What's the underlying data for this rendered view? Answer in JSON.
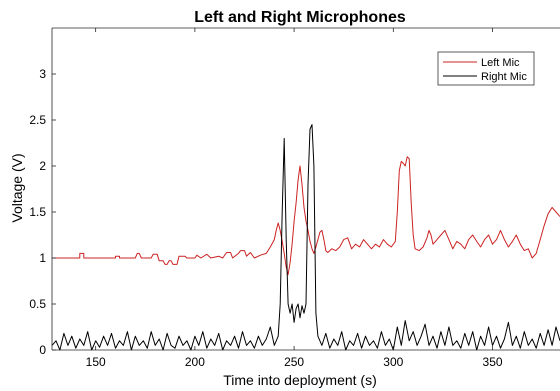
{
  "chart_data": {
    "type": "line",
    "title": "Left and Right Microphones",
    "xlabel": "Time into deployment (s)",
    "ylabel": "Voltage (V)",
    "xlim": [
      128,
      384
    ],
    "ylim": [
      0,
      3.5
    ],
    "xticks": [
      150,
      200,
      250,
      300,
      350
    ],
    "yticks": [
      0,
      0.5,
      1,
      1.5,
      2,
      2.5,
      3
    ],
    "ytick_labels": [
      "0",
      "0.5",
      "1",
      "1.5",
      "2",
      "2.5",
      "3"
    ],
    "legend_position": "top-right",
    "grid": false,
    "series": [
      {
        "name": "Left Mic",
        "color": "#cc2222",
        "points": [
          [
            128,
            1.0
          ],
          [
            140,
            1.0
          ],
          [
            142,
            1.0
          ],
          [
            142,
            1.05
          ],
          [
            144,
            1.05
          ],
          [
            144,
            1.0
          ],
          [
            160,
            1.0
          ],
          [
            160,
            1.02
          ],
          [
            162,
            1.02
          ],
          [
            162,
            1.0
          ],
          [
            170,
            1.0
          ],
          [
            171,
            1.05
          ],
          [
            172,
            1.05
          ],
          [
            173,
            1.0
          ],
          [
            178,
            1.0
          ],
          [
            179,
            1.04
          ],
          [
            181,
            1.04
          ],
          [
            182,
            0.97
          ],
          [
            184,
            0.97
          ],
          [
            185,
            0.93
          ],
          [
            186,
            0.93
          ],
          [
            187,
            0.97
          ],
          [
            188,
            0.97
          ],
          [
            189,
            0.93
          ],
          [
            191,
            0.93
          ],
          [
            192,
            1.02
          ],
          [
            195,
            1.02
          ],
          [
            196,
            1.0
          ],
          [
            200,
            1.0
          ],
          [
            201,
            1.03
          ],
          [
            203,
            1.0
          ],
          [
            206,
            1.04
          ],
          [
            208,
            1.0
          ],
          [
            212,
            1.02
          ],
          [
            214,
            1.0
          ],
          [
            216,
            1.06
          ],
          [
            218,
            1.06
          ],
          [
            219,
            1.0
          ],
          [
            222,
            1.05
          ],
          [
            223,
            1.08
          ],
          [
            225,
            1.08
          ],
          [
            226,
            1.02
          ],
          [
            228,
            1.06
          ],
          [
            230,
            1.0
          ],
          [
            233,
            1.03
          ],
          [
            236,
            1.05
          ],
          [
            238,
            1.12
          ],
          [
            240,
            1.2
          ],
          [
            241,
            1.3
          ],
          [
            242,
            1.38
          ],
          [
            243,
            1.3
          ],
          [
            244,
            1.18
          ],
          [
            245,
            1.05
          ],
          [
            246,
            0.9
          ],
          [
            247,
            0.82
          ],
          [
            248,
            0.95
          ],
          [
            249,
            1.15
          ],
          [
            250,
            1.4
          ],
          [
            251,
            1.6
          ],
          [
            252,
            1.85
          ],
          [
            253,
            2.0
          ],
          [
            254,
            1.8
          ],
          [
            255,
            1.55
          ],
          [
            256,
            1.4
          ],
          [
            257,
            1.3
          ],
          [
            258,
            1.18
          ],
          [
            259,
            1.1
          ],
          [
            260,
            1.05
          ],
          [
            261,
            1.12
          ],
          [
            262,
            1.2
          ],
          [
            263,
            1.28
          ],
          [
            264,
            1.3
          ],
          [
            265,
            1.2
          ],
          [
            266,
            1.08
          ],
          [
            267,
            1.06
          ],
          [
            269,
            1.1
          ],
          [
            271,
            1.08
          ],
          [
            273,
            1.12
          ],
          [
            275,
            1.2
          ],
          [
            277,
            1.22
          ],
          [
            279,
            1.1
          ],
          [
            281,
            1.15
          ],
          [
            283,
            1.12
          ],
          [
            285,
            1.2
          ],
          [
            287,
            1.15
          ],
          [
            289,
            1.1
          ],
          [
            291,
            1.15
          ],
          [
            293,
            1.12
          ],
          [
            295,
            1.2
          ],
          [
            297,
            1.15
          ],
          [
            299,
            1.12
          ],
          [
            301,
            1.18
          ],
          [
            302,
            1.5
          ],
          [
            303,
            1.95
          ],
          [
            304,
            2.05
          ],
          [
            305,
            2.03
          ],
          [
            306,
            2.0
          ],
          [
            307,
            2.1
          ],
          [
            308,
            2.08
          ],
          [
            309,
            1.6
          ],
          [
            310,
            1.25
          ],
          [
            311,
            1.1
          ],
          [
            313,
            1.08
          ],
          [
            315,
            1.12
          ],
          [
            317,
            1.22
          ],
          [
            318,
            1.3
          ],
          [
            319,
            1.25
          ],
          [
            320,
            1.15
          ],
          [
            322,
            1.2
          ],
          [
            324,
            1.25
          ],
          [
            326,
            1.3
          ],
          [
            328,
            1.2
          ],
          [
            330,
            1.1
          ],
          [
            332,
            1.18
          ],
          [
            334,
            1.15
          ],
          [
            336,
            1.1
          ],
          [
            338,
            1.2
          ],
          [
            340,
            1.25
          ],
          [
            342,
            1.18
          ],
          [
            344,
            1.12
          ],
          [
            346,
            1.2
          ],
          [
            348,
            1.25
          ],
          [
            350,
            1.15
          ],
          [
            352,
            1.2
          ],
          [
            354,
            1.3
          ],
          [
            356,
            1.2
          ],
          [
            358,
            1.12
          ],
          [
            360,
            1.18
          ],
          [
            362,
            1.25
          ],
          [
            364,
            1.15
          ],
          [
            366,
            1.08
          ],
          [
            368,
            1.1
          ],
          [
            370,
            1.0
          ],
          [
            372,
            1.05
          ],
          [
            374,
            1.2
          ],
          [
            376,
            1.35
          ],
          [
            378,
            1.48
          ],
          [
            380,
            1.55
          ],
          [
            382,
            1.5
          ],
          [
            384,
            1.45
          ]
        ]
      },
      {
        "name": "Right Mic",
        "color": "#000000",
        "points": [
          [
            128,
            0.05
          ],
          [
            130,
            0.1
          ],
          [
            132,
            0.0
          ],
          [
            134,
            0.18
          ],
          [
            136,
            0.05
          ],
          [
            138,
            0.15
          ],
          [
            140,
            0.02
          ],
          [
            142,
            0.12
          ],
          [
            144,
            0.05
          ],
          [
            146,
            0.2
          ],
          [
            148,
            0.0
          ],
          [
            150,
            0.1
          ],
          [
            152,
            0.03
          ],
          [
            154,
            0.15
          ],
          [
            156,
            0.05
          ],
          [
            158,
            0.18
          ],
          [
            160,
            0.02
          ],
          [
            162,
            0.1
          ],
          [
            164,
            0.05
          ],
          [
            166,
            0.2
          ],
          [
            168,
            0.0
          ],
          [
            170,
            0.15
          ],
          [
            172,
            0.05
          ],
          [
            174,
            0.1
          ],
          [
            176,
            0.02
          ],
          [
            178,
            0.2
          ],
          [
            180,
            0.05
          ],
          [
            182,
            0.12
          ],
          [
            184,
            0.0
          ],
          [
            186,
            0.18
          ],
          [
            188,
            0.05
          ],
          [
            190,
            0.02
          ],
          [
            192,
            0.15
          ],
          [
            194,
            0.05
          ],
          [
            196,
            0.1
          ],
          [
            198,
            0.0
          ],
          [
            200,
            0.15
          ],
          [
            202,
            0.05
          ],
          [
            204,
            0.2
          ],
          [
            206,
            0.02
          ],
          [
            208,
            0.12
          ],
          [
            210,
            0.05
          ],
          [
            212,
            0.18
          ],
          [
            214,
            0.0
          ],
          [
            216,
            0.1
          ],
          [
            218,
            0.05
          ],
          [
            220,
            0.15
          ],
          [
            222,
            0.02
          ],
          [
            224,
            0.2
          ],
          [
            226,
            0.05
          ],
          [
            228,
            0.1
          ],
          [
            230,
            0.02
          ],
          [
            232,
            0.15
          ],
          [
            234,
            0.05
          ],
          [
            236,
            0.12
          ],
          [
            238,
            0.25
          ],
          [
            240,
            0.05
          ],
          [
            242,
            0.15
          ],
          [
            243,
            0.5
          ],
          [
            244,
            1.5
          ],
          [
            245,
            2.3
          ],
          [
            246,
            1.2
          ],
          [
            247,
            0.5
          ],
          [
            248,
            0.4
          ],
          [
            249,
            0.5
          ],
          [
            250,
            0.3
          ],
          [
            251,
            0.45
          ],
          [
            252,
            0.5
          ],
          [
            253,
            0.35
          ],
          [
            254,
            0.48
          ],
          [
            255,
            0.4
          ],
          [
            256,
            0.5
          ],
          [
            257,
            1.8
          ],
          [
            258,
            2.4
          ],
          [
            259,
            2.45
          ],
          [
            260,
            2.0
          ],
          [
            261,
            0.4
          ],
          [
            262,
            0.15
          ],
          [
            264,
            0.05
          ],
          [
            266,
            0.18
          ],
          [
            268,
            0.02
          ],
          [
            270,
            0.12
          ],
          [
            272,
            0.05
          ],
          [
            274,
            0.2
          ],
          [
            276,
            0.0
          ],
          [
            278,
            0.1
          ],
          [
            280,
            0.05
          ],
          [
            282,
            0.18
          ],
          [
            284,
            0.02
          ],
          [
            286,
            0.15
          ],
          [
            288,
            0.05
          ],
          [
            290,
            0.1
          ],
          [
            292,
            0.02
          ],
          [
            294,
            0.2
          ],
          [
            296,
            0.05
          ],
          [
            298,
            0.12
          ],
          [
            300,
            0.0
          ],
          [
            302,
            0.25
          ],
          [
            304,
            0.05
          ],
          [
            306,
            0.32
          ],
          [
            308,
            0.1
          ],
          [
            310,
            0.2
          ],
          [
            312,
            0.05
          ],
          [
            314,
            0.15
          ],
          [
            316,
            0.28
          ],
          [
            318,
            0.05
          ],
          [
            320,
            0.15
          ],
          [
            322,
            0.02
          ],
          [
            324,
            0.2
          ],
          [
            326,
            0.05
          ],
          [
            328,
            0.25
          ],
          [
            330,
            0.05
          ],
          [
            332,
            0.1
          ],
          [
            334,
            0.02
          ],
          [
            336,
            0.18
          ],
          [
            338,
            0.05
          ],
          [
            340,
            0.2
          ],
          [
            342,
            0.0
          ],
          [
            344,
            0.15
          ],
          [
            346,
            0.05
          ],
          [
            348,
            0.25
          ],
          [
            350,
            0.05
          ],
          [
            352,
            0.15
          ],
          [
            354,
            0.02
          ],
          [
            356,
            0.12
          ],
          [
            358,
            0.3
          ],
          [
            360,
            0.05
          ],
          [
            362,
            0.15
          ],
          [
            364,
            0.02
          ],
          [
            366,
            0.2
          ],
          [
            368,
            0.05
          ],
          [
            370,
            0.12
          ],
          [
            372,
            0.02
          ],
          [
            374,
            0.18
          ],
          [
            376,
            0.05
          ],
          [
            378,
            0.22
          ],
          [
            380,
            0.05
          ],
          [
            382,
            0.25
          ],
          [
            384,
            0.1
          ]
        ]
      }
    ]
  }
}
